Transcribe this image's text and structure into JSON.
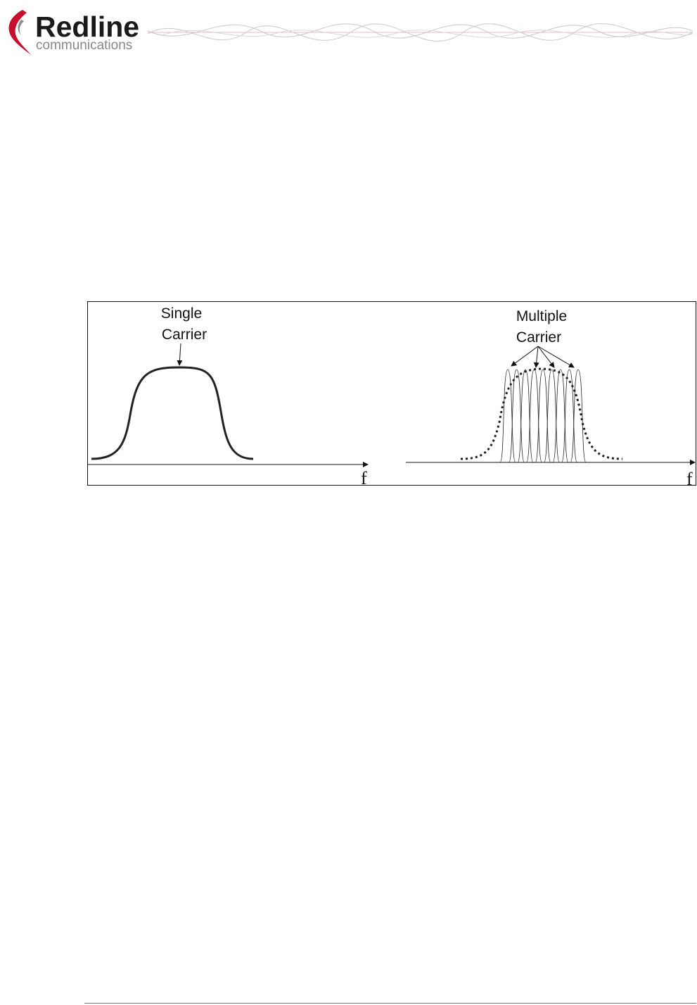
{
  "header": {
    "brand": "Redline",
    "tagline": "communications"
  },
  "figure": {
    "left": {
      "label": [
        "Single",
        "Carrier"
      ],
      "axis": "f"
    },
    "right": {
      "label": [
        "Multiple",
        "Carrier"
      ],
      "axis": "f"
    }
  }
}
